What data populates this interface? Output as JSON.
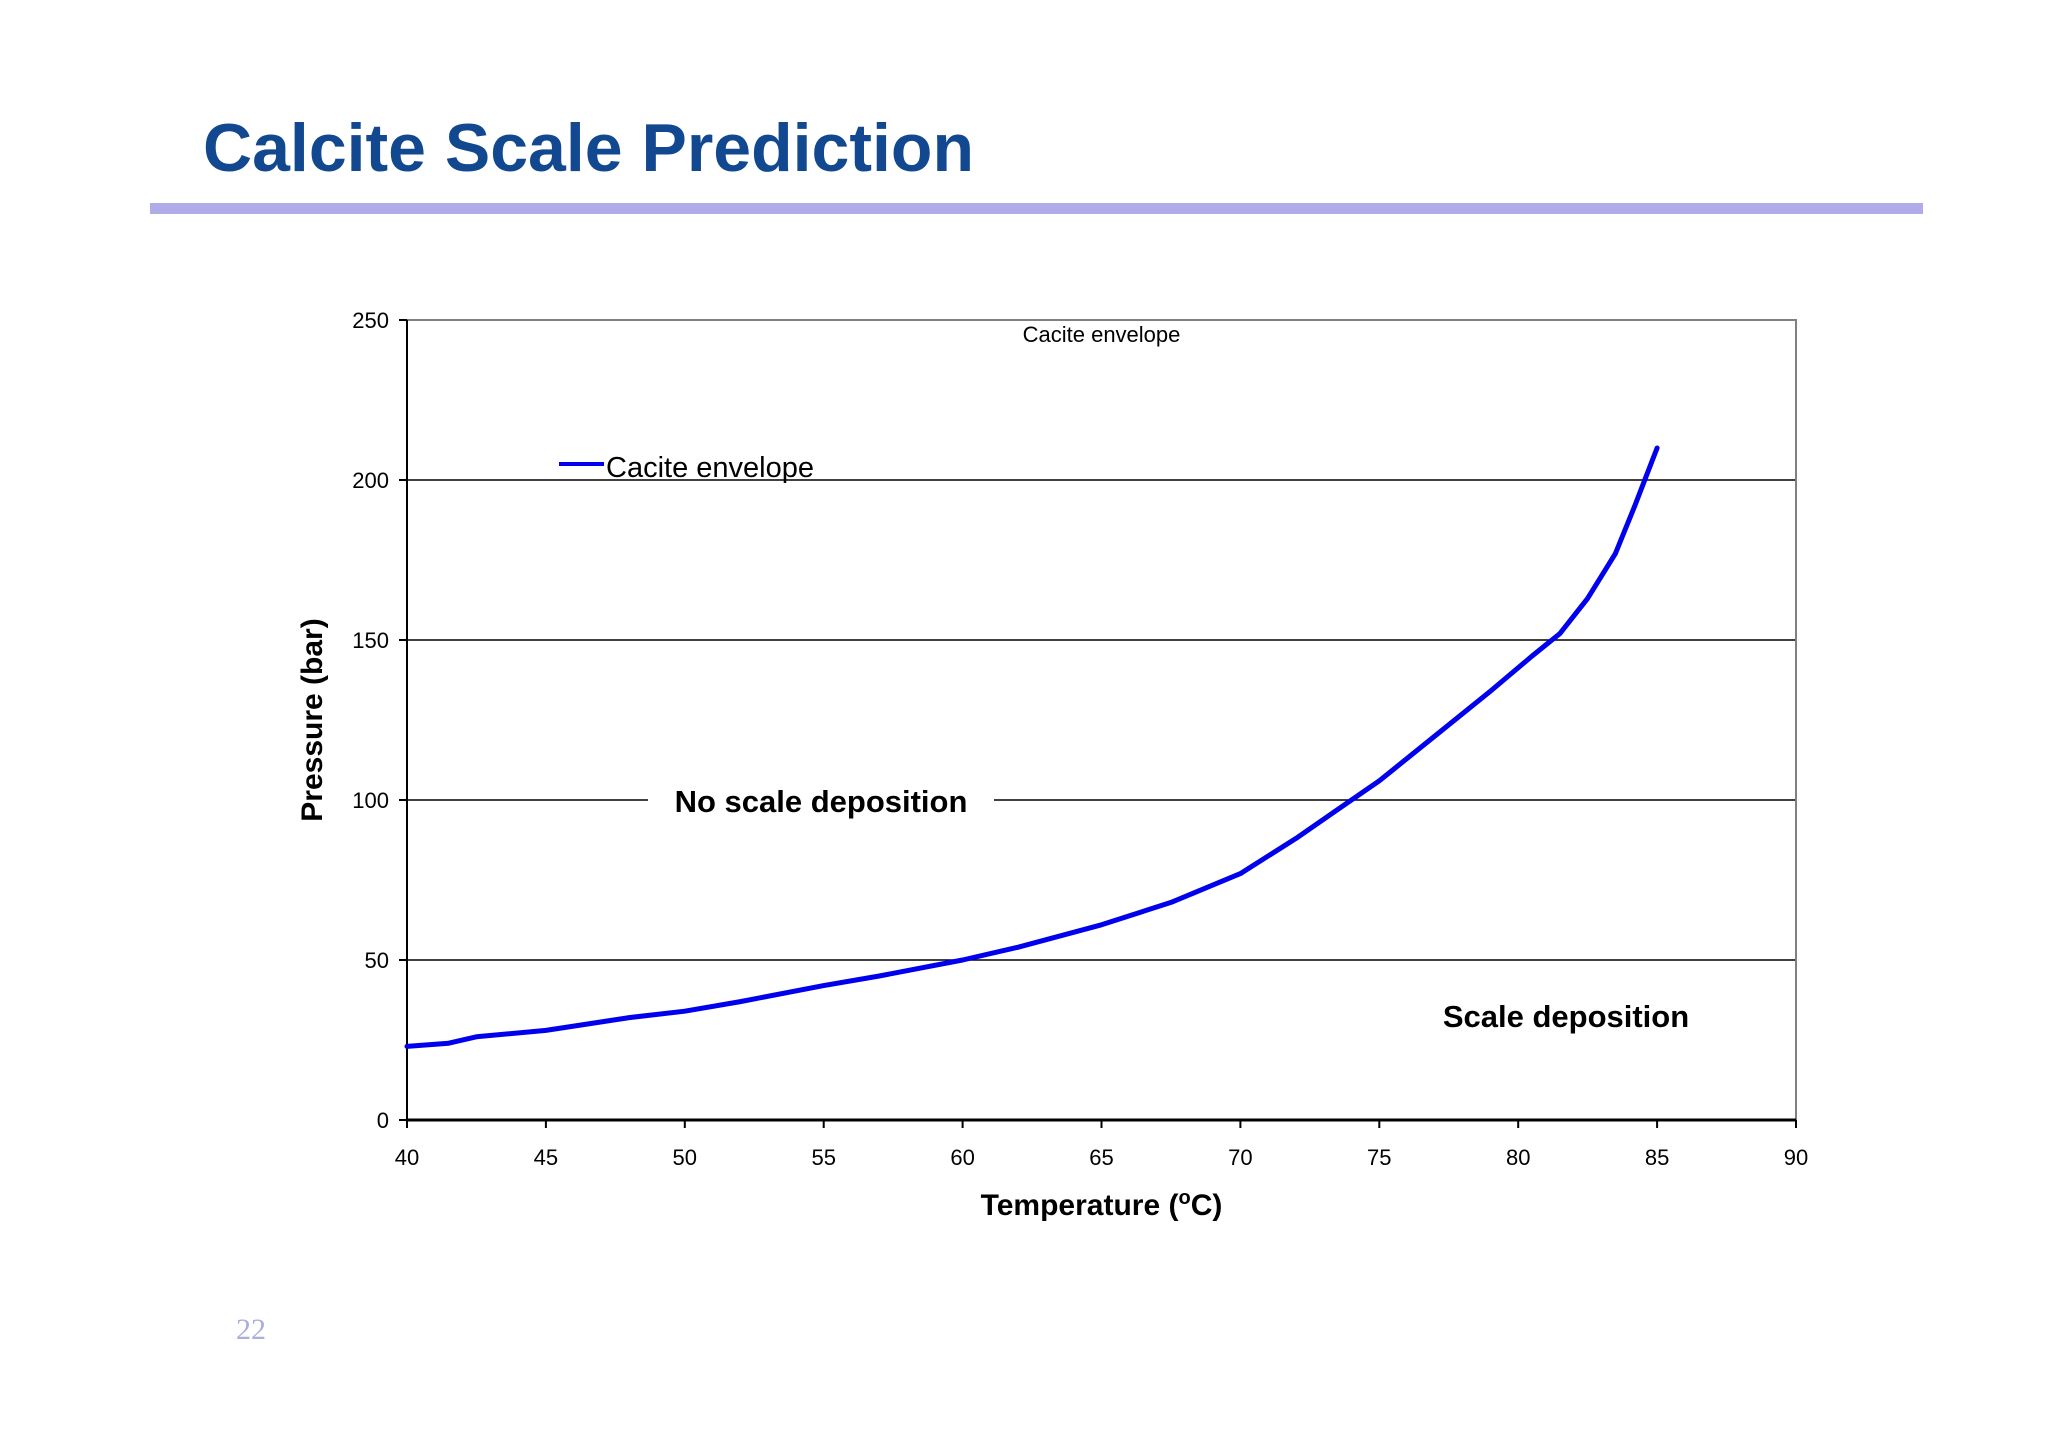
{
  "slide": {
    "title": "Calcite Scale Prediction",
    "page_number": "22",
    "title_color": "#12488f",
    "rule_color": "#b0acea"
  },
  "chart_data": {
    "type": "line",
    "title": "Cacite envelope",
    "xlabel_main": "Temperature (",
    "xlabel_sup": "o",
    "xlabel_end": "C)",
    "ylabel": "Pressure (bar)",
    "xlim": [
      40,
      90
    ],
    "ylim": [
      0,
      250
    ],
    "x_ticks": [
      40,
      45,
      50,
      55,
      60,
      65,
      70,
      75,
      80,
      85,
      90
    ],
    "y_ticks": [
      0,
      50,
      100,
      150,
      200,
      250
    ],
    "grid": "horizontal major gridlines",
    "legend_position": "top-left inside plot",
    "series": [
      {
        "name": "Cacite envelope",
        "color": "#0000ee",
        "x": [
          40,
          41.5,
          42.5,
          45,
          46.5,
          48,
          50,
          52,
          55,
          57,
          60,
          62,
          65,
          67.5,
          70,
          72,
          73.5,
          75,
          77,
          79,
          80.5,
          81.5,
          82.5,
          83.5,
          84.2,
          85
        ],
        "y": [
          23,
          24,
          26,
          28,
          30,
          32,
          34,
          37,
          42,
          45,
          50,
          54,
          61,
          68,
          77,
          88,
          97,
          106,
          120,
          134,
          145,
          152,
          163,
          177,
          192,
          210
        ]
      }
    ],
    "annotations": {
      "no_scale": "No scale deposition",
      "scale": "Scale deposition"
    }
  }
}
